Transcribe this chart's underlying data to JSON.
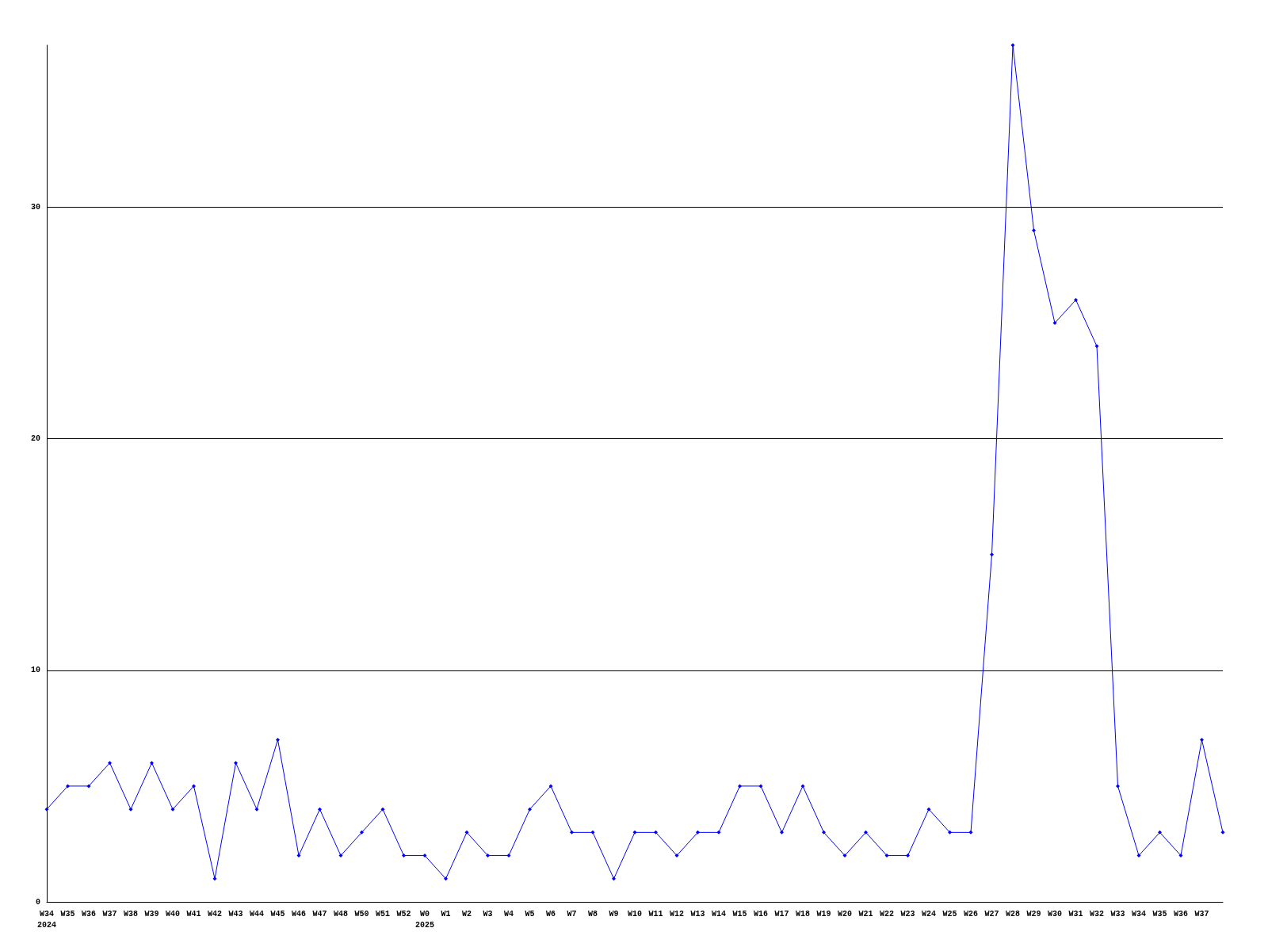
{
  "chart_data": {
    "type": "line",
    "categories": [
      "W34\n2024",
      "W35",
      "W36",
      "W37",
      "W38",
      "W39",
      "W40",
      "W41",
      "W42",
      "W43",
      "W44",
      "W45",
      "W46",
      "W47",
      "W48",
      "W50",
      "W51",
      "W52",
      "W0\n2025",
      "W1",
      "W2",
      "W3",
      "W4",
      "W5",
      "W6",
      "W7",
      "W8",
      "W9",
      "W10",
      "W11",
      "W12",
      "W13",
      "W14",
      "W15",
      "W16",
      "W17",
      "W18",
      "W19",
      "W20",
      "W21",
      "W22",
      "W23",
      "W24",
      "W25",
      "W26",
      "W27",
      "W28",
      "W29",
      "W30",
      "W31",
      "W32",
      "W33",
      "W34",
      "W35",
      "W36",
      "W37",
      null
    ],
    "series": [
      {
        "color": "#0000ff",
        "values": [
          4,
          5,
          5,
          6,
          4,
          6,
          4,
          5,
          1,
          6,
          4,
          7,
          2,
          4,
          2,
          3,
          4,
          2,
          2,
          1,
          3,
          2,
          2,
          4,
          5,
          3,
          3,
          1,
          3,
          3,
          2,
          3,
          3,
          5,
          5,
          3,
          5,
          3,
          2,
          3,
          2,
          2,
          4,
          3,
          3,
          15,
          37,
          29,
          25,
          26,
          24,
          5,
          2,
          3,
          2,
          7,
          3
        ]
      }
    ],
    "ylim": [
      0,
      37
    ],
    "yticks": [
      0,
      10,
      20,
      30
    ],
    "grid": "y",
    "marker": "diamond",
    "line_style": "solid"
  }
}
